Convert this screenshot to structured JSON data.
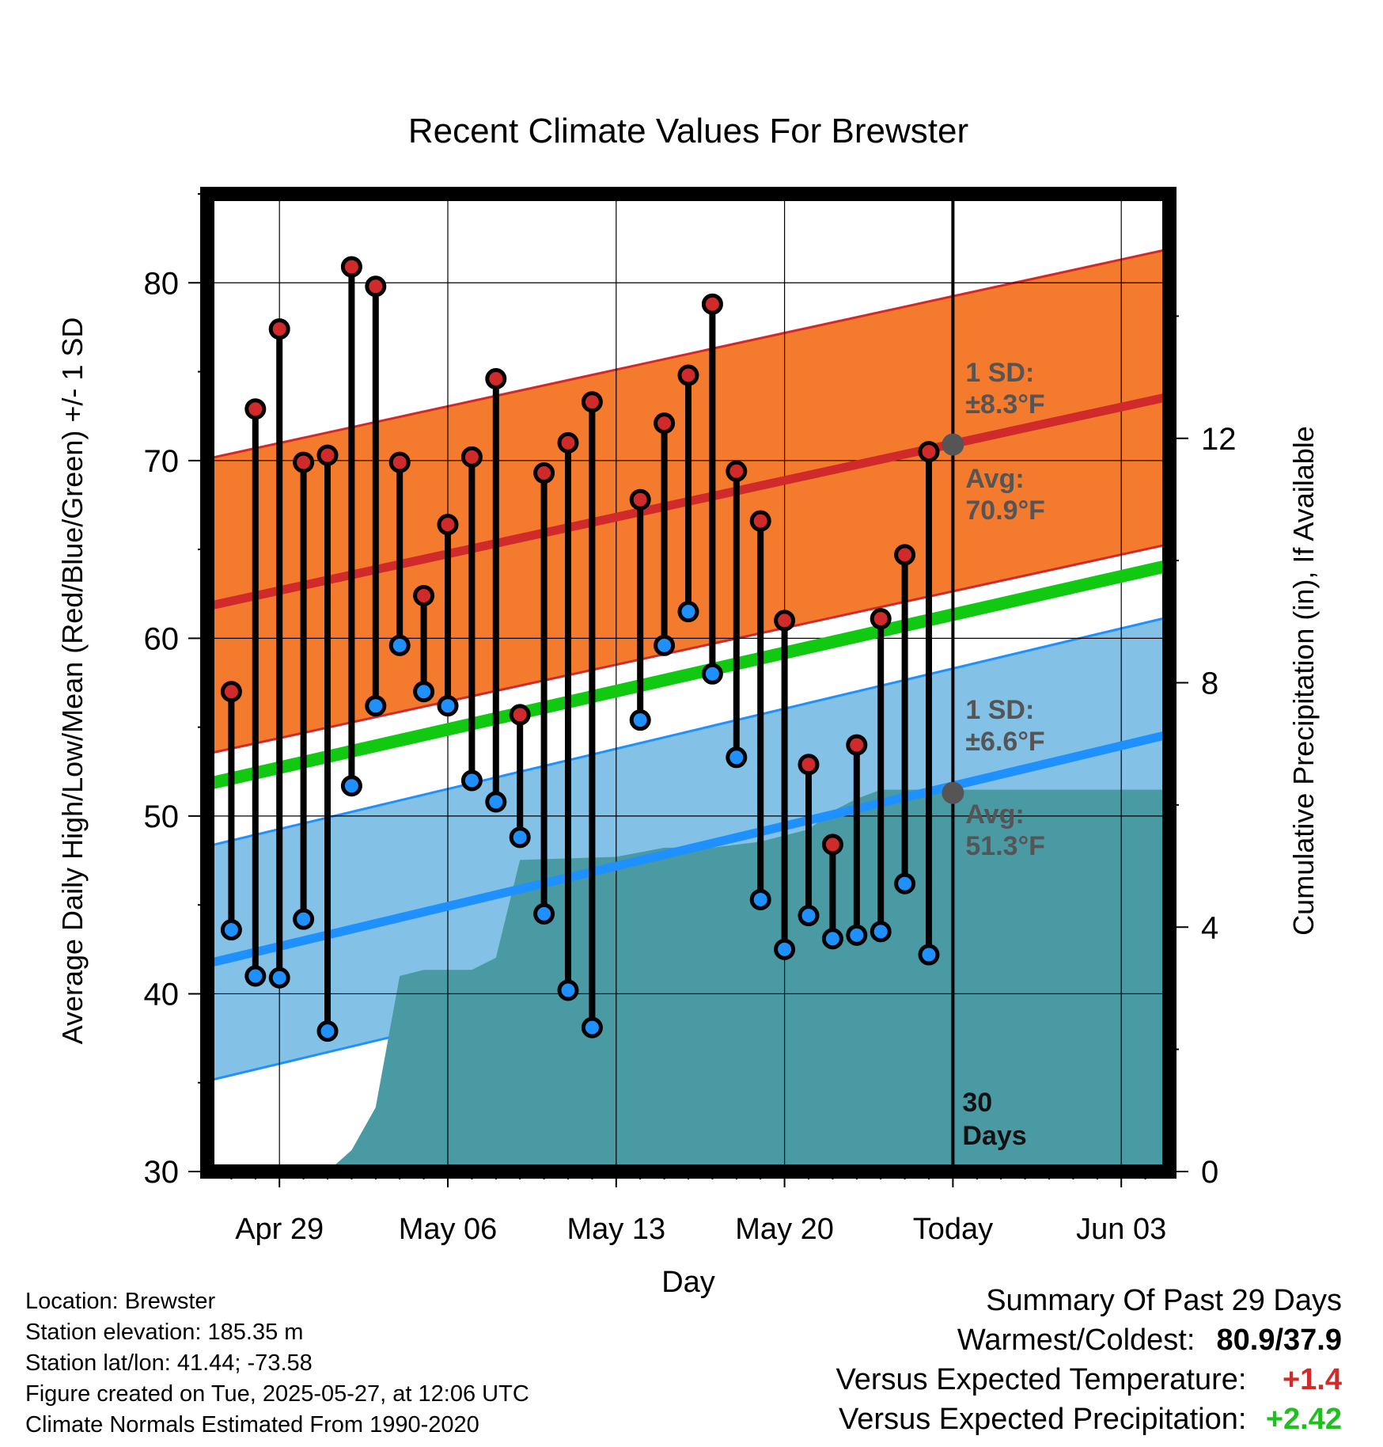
{
  "chart_data": {
    "type": "line",
    "title": "Recent Climate Values For Brewster",
    "xlabel": "Day",
    "ylabel_left": "Average Daily High/Low/Mean (Red/Blue/Green) +/- 1 SD",
    "ylabel_right": "Cumulative Precipitation (in), If Available",
    "ylim": [
      30,
      85
    ],
    "y2lim": [
      0,
      16
    ],
    "y_ticks": [
      30,
      40,
      50,
      60,
      70,
      80
    ],
    "y2_ticks": [
      0,
      4,
      8,
      12
    ],
    "x_range": [
      "2025-04-26",
      "2025-06-05"
    ],
    "x_tick_dates": [
      "2025-04-29",
      "2025-05-06",
      "2025-05-13",
      "2025-05-20",
      "2025-05-27",
      "2025-06-03"
    ],
    "x_tick_labels": [
      "Apr 29",
      "May 06",
      "May 13",
      "May 20",
      "Today",
      "Jun 03"
    ],
    "grid": true,
    "normal_high": {
      "start": 61.8,
      "end": 73.6,
      "sd": 8.3,
      "today_avg": 70.9,
      "sd_label_1": "1 SD:",
      "sd_label_2": "±8.3°F",
      "avg_label_1": "Avg:",
      "avg_label_2": "70.9°F"
    },
    "normal_low": {
      "start": 41.7,
      "end": 54.6,
      "sd": 6.6,
      "today_avg": 51.3,
      "sd_label_1": "1 SD:",
      "sd_label_2": "±6.6°F",
      "avg_label_1": "Avg:",
      "avg_label_2": "51.3°F"
    },
    "normal_mean": {
      "start": 51.8,
      "end": 64.1
    },
    "today_date": "2025-05-27",
    "today_label_1": "30",
    "today_label_2": "Days",
    "observations": [
      {
        "date": "2025-04-27",
        "high": 57.0,
        "low": 43.6
      },
      {
        "date": "2025-04-28",
        "high": 72.9,
        "low": 41.0
      },
      {
        "date": "2025-04-29",
        "high": 77.4,
        "low": 40.9
      },
      {
        "date": "2025-04-30",
        "high": 69.9,
        "low": 44.2
      },
      {
        "date": "2025-05-01",
        "high": 70.3,
        "low": 37.9
      },
      {
        "date": "2025-05-02",
        "high": 80.9,
        "low": 51.7
      },
      {
        "date": "2025-05-03",
        "high": 79.8,
        "low": 56.2
      },
      {
        "date": "2025-05-04",
        "high": 69.9,
        "low": 59.6
      },
      {
        "date": "2025-05-05",
        "high": 62.4,
        "low": 57.0
      },
      {
        "date": "2025-05-06",
        "high": 66.4,
        "low": 56.2
      },
      {
        "date": "2025-05-07",
        "high": 70.2,
        "low": 52.0
      },
      {
        "date": "2025-05-08",
        "high": 74.6,
        "low": 50.8
      },
      {
        "date": "2025-05-09",
        "high": 55.7,
        "low": 48.8
      },
      {
        "date": "2025-05-10",
        "high": 69.3,
        "low": 44.5
      },
      {
        "date": "2025-05-11",
        "high": 71.0,
        "low": 40.2
      },
      {
        "date": "2025-05-12",
        "high": 73.3,
        "low": 38.1
      },
      {
        "date": "2025-05-14",
        "high": 67.8,
        "low": 55.4
      },
      {
        "date": "2025-05-15",
        "high": 72.1,
        "low": 59.6
      },
      {
        "date": "2025-05-16",
        "high": 74.8,
        "low": 61.5
      },
      {
        "date": "2025-05-17",
        "high": 78.8,
        "low": 58.0
      },
      {
        "date": "2025-05-18",
        "high": 69.4,
        "low": 53.3
      },
      {
        "date": "2025-05-19",
        "high": 66.6,
        "low": 45.3
      },
      {
        "date": "2025-05-20",
        "high": 61.0,
        "low": 42.5
      },
      {
        "date": "2025-05-21",
        "high": 52.9,
        "low": 44.4
      },
      {
        "date": "2025-05-22",
        "high": 48.4,
        "low": 43.1
      },
      {
        "date": "2025-05-23",
        "high": 54.0,
        "low": 43.3
      },
      {
        "date": "2025-05-24",
        "high": 61.1,
        "low": 43.5
      },
      {
        "date": "2025-05-25",
        "high": 64.7,
        "low": 46.2
      },
      {
        "date": "2025-05-26",
        "high": 70.5,
        "low": 42.2
      }
    ],
    "precipitation": [
      {
        "date": "2025-05-01",
        "in": 0.0
      },
      {
        "date": "2025-05-02",
        "in": 0.35
      },
      {
        "date": "2025-05-03",
        "in": 1.05
      },
      {
        "date": "2025-05-04",
        "in": 3.2
      },
      {
        "date": "2025-05-05",
        "in": 3.3
      },
      {
        "date": "2025-05-06",
        "in": 3.3
      },
      {
        "date": "2025-05-07",
        "in": 3.3
      },
      {
        "date": "2025-05-08",
        "in": 3.5
      },
      {
        "date": "2025-05-09",
        "in": 5.1
      },
      {
        "date": "2025-05-13",
        "in": 5.15
      },
      {
        "date": "2025-05-15",
        "in": 5.3
      },
      {
        "date": "2025-05-17",
        "in": 5.3
      },
      {
        "date": "2025-05-19",
        "in": 5.4
      },
      {
        "date": "2025-05-20",
        "in": 5.5
      },
      {
        "date": "2025-05-21",
        "in": 5.6
      },
      {
        "date": "2025-05-22",
        "in": 5.9
      },
      {
        "date": "2025-05-23",
        "in": 6.1
      },
      {
        "date": "2025-05-24",
        "in": 6.25
      },
      {
        "date": "2025-06-05",
        "in": 6.25
      }
    ],
    "colors": {
      "high_band": "#f47a2e",
      "high_line": "#d12a2a",
      "low_band": "#83c1e6",
      "low_line": "#1e90ff",
      "mean_line": "#12c912",
      "precip": "#4a9aa4",
      "high_dot": "#d12a2a",
      "low_dot": "#1e90ff",
      "annotation": "#555555"
    }
  },
  "info": {
    "location": "Location: Brewster",
    "elevation": "Station elevation: 185.35 m",
    "latlon": "Station lat/lon: 41.44; -73.58",
    "created": "Figure created on Tue, 2025-05-27, at 12:06 UTC",
    "normals": "Climate Normals Estimated From 1990-2020"
  },
  "summary": {
    "title": "Summary Of Past 29 Days",
    "warm_label": "Warmest/Coldest:",
    "warm_value": "80.9/37.9",
    "temp_label": "Versus Expected Temperature:",
    "temp_value": "+1.4",
    "precip_label": "Versus Expected Precipitation:",
    "precip_value": "+2.42"
  }
}
